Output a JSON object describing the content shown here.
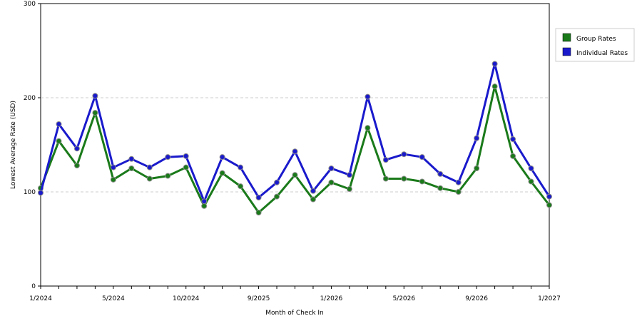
{
  "chart_data": {
    "type": "line",
    "xlabel": "Month of Check In",
    "ylabel": "Lowest Average Rate (USD)",
    "ylim": [
      0,
      300
    ],
    "y_ticks": [
      0,
      100,
      200,
      300
    ],
    "x_tick_labels": [
      "1/2024",
      "5/2024",
      "10/2024",
      "9/2025",
      "1/2026",
      "5/2026",
      "9/2026",
      "1/2027"
    ],
    "grid": "horizontal-dashed",
    "legend_position": "right",
    "series": [
      {
        "name": "Group Rates",
        "color": "#1a7a1a",
        "values": [
          104,
          154,
          128,
          184,
          113,
          125,
          114,
          117,
          126,
          85,
          120,
          106,
          78,
          95,
          118,
          92,
          110,
          103,
          168,
          114,
          114,
          111,
          104,
          100,
          125,
          212,
          138,
          111,
          86
        ]
      },
      {
        "name": "Individual Rates",
        "color": "#1a1acc",
        "values": [
          99,
          172,
          146,
          202,
          126,
          135,
          126,
          137,
          138,
          90,
          137,
          126,
          94,
          110,
          143,
          101,
          125,
          118,
          201,
          134,
          140,
          137,
          119,
          110,
          157,
          236,
          156,
          125,
          95
        ]
      }
    ]
  }
}
